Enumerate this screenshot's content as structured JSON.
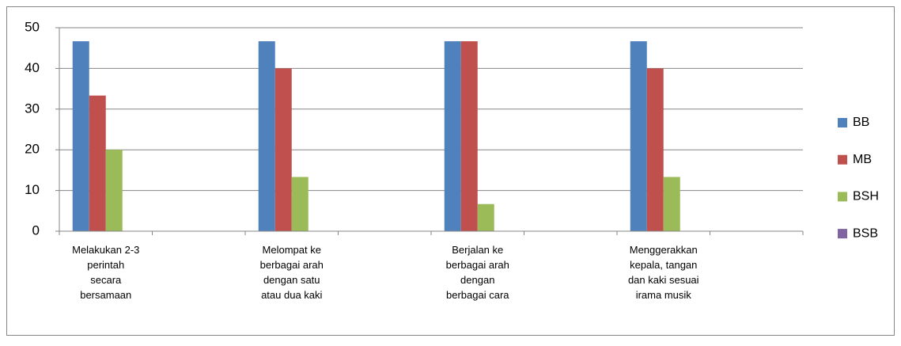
{
  "chart_data": {
    "type": "bar",
    "categories": [
      "Melakukan 2-3\nperintah\nsecara\nbersamaan",
      null,
      "Melompat ke\nberbagai arah\ndengan satu\natau dua kaki",
      null,
      "Berjalan ke\nberbagai arah\ndengan\nberbagai cara",
      null,
      "Menggerakkan\nkepala, tangan\ndan kaki sesuai\nirama musik",
      null
    ],
    "series": [
      {
        "name": "BB",
        "color": "#4f81bd",
        "values": [
          46.67,
          null,
          46.67,
          null,
          46.67,
          null,
          46.67,
          null
        ]
      },
      {
        "name": "MB",
        "color": "#c0504d",
        "values": [
          33.33,
          null,
          40,
          null,
          46.67,
          null,
          40,
          null
        ]
      },
      {
        "name": "BSH",
        "color": "#9bbb59",
        "values": [
          20,
          null,
          13.33,
          null,
          6.67,
          null,
          13.33,
          null
        ]
      },
      {
        "name": "BSB",
        "color": "#8064a2",
        "values": [
          0,
          null,
          0,
          null,
          0,
          null,
          0,
          null
        ]
      }
    ],
    "ylim": [
      0,
      50
    ],
    "yticks": [
      0,
      10,
      20,
      30,
      40,
      50
    ],
    "grid": true,
    "legend": "right"
  }
}
